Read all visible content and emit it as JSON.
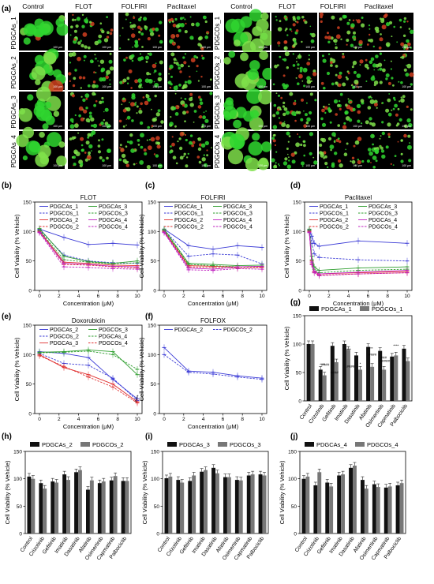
{
  "figure": {
    "panel_a": {
      "label": "(a)",
      "col_headers": [
        "Control",
        "FLOT",
        "FOLFIRI",
        "Paclitaxel"
      ],
      "left_rows": [
        "PDGCAs_1",
        "PDGCAs_2",
        "PDGCAs_3",
        "PDGCAs_4"
      ],
      "right_rows": [
        "PDGCOs_1",
        "PDGCOs_2",
        "PDGCOs_3",
        "PDGCOs_4"
      ],
      "scale_bar": "100 μm"
    }
  },
  "chart_data": [
    {
      "id": "b",
      "panel_label": "(b)",
      "type": "line",
      "title": "FLOT",
      "xlabel": "Concentration (μM)",
      "ylabel": "Cell Viability (% Vehicle)",
      "xlim": [
        0,
        10
      ],
      "ylim": [
        0,
        150
      ],
      "xticks": [
        0,
        2,
        4,
        6,
        8,
        10
      ],
      "yticks": [
        0,
        50,
        100,
        150
      ],
      "x": [
        0,
        2.5,
        5,
        7.5,
        10
      ],
      "series": [
        {
          "name": "PDGCAs_1",
          "color": "#3b3bd6",
          "dash": false,
          "values": [
            104,
            90,
            78,
            80,
            77
          ]
        },
        {
          "name": "PDGCOs_1",
          "color": "#3b3bd6",
          "dash": true,
          "values": [
            103,
            60,
            50,
            47,
            46
          ]
        },
        {
          "name": "PDGCAs_2",
          "color": "#e03030",
          "dash": false,
          "values": [
            101,
            48,
            46,
            43,
            42
          ]
        },
        {
          "name": "PDGCOs_2",
          "color": "#e03030",
          "dash": true,
          "values": [
            100,
            44,
            43,
            40,
            38
          ]
        },
        {
          "name": "PDGCAs_3",
          "color": "#2e9e2e",
          "dash": false,
          "values": [
            105,
            58,
            49,
            46,
            50
          ]
        },
        {
          "name": "PDGCOs_3",
          "color": "#2e9e2e",
          "dash": true,
          "values": [
            102,
            52,
            48,
            45,
            47
          ]
        },
        {
          "name": "PDGCAs_4",
          "color": "#c020c0",
          "dash": false,
          "values": [
            99,
            46,
            44,
            41,
            40
          ]
        },
        {
          "name": "PDGCOs_4",
          "color": "#c020c0",
          "dash": true,
          "values": [
            98,
            40,
            39,
            37,
            36
          ]
        }
      ]
    },
    {
      "id": "c",
      "panel_label": "(c)",
      "type": "line",
      "title": "FOLFIRI",
      "xlabel": "Concentration (μM)",
      "ylabel": "Cell Viability (% Vehicle)",
      "xlim": [
        0,
        10
      ],
      "ylim": [
        0,
        150
      ],
      "xticks": [
        0,
        2,
        4,
        6,
        8,
        10
      ],
      "yticks": [
        0,
        50,
        100,
        150
      ],
      "x": [
        0,
        2.5,
        5,
        7.5,
        10
      ],
      "series": [
        {
          "name": "PDGCAs_1",
          "color": "#3b3bd6",
          "dash": false,
          "values": [
            104,
            76,
            70,
            76,
            73
          ]
        },
        {
          "name": "PDGCOs_1",
          "color": "#3b3bd6",
          "dash": true,
          "values": [
            103,
            58,
            62,
            60,
            45
          ]
        },
        {
          "name": "PDGCAs_2",
          "color": "#e03030",
          "dash": false,
          "values": [
            101,
            42,
            41,
            40,
            40
          ]
        },
        {
          "name": "PDGCOs_2",
          "color": "#e03030",
          "dash": true,
          "values": [
            100,
            40,
            39,
            38,
            39
          ]
        },
        {
          "name": "PDGCAs_3",
          "color": "#2e9e2e",
          "dash": false,
          "values": [
            104,
            46,
            44,
            42,
            43
          ]
        },
        {
          "name": "PDGCOs_3",
          "color": "#2e9e2e",
          "dash": true,
          "values": [
            102,
            44,
            42,
            40,
            41
          ]
        },
        {
          "name": "PDGCAs_4",
          "color": "#c020c0",
          "dash": false,
          "values": [
            99,
            38,
            36,
            40,
            41
          ]
        },
        {
          "name": "PDGCOs_4",
          "color": "#c020c0",
          "dash": true,
          "values": [
            98,
            35,
            34,
            37,
            36
          ]
        }
      ]
    },
    {
      "id": "d",
      "panel_label": "(d)",
      "type": "line",
      "title": "Paclitaxel",
      "xlabel": "Concentration (μM)",
      "ylabel": "Cell Viability (% Vehicle)",
      "xlim": [
        0,
        10
      ],
      "ylim": [
        0,
        150
      ],
      "xticks": [
        0,
        2,
        4,
        6,
        8,
        10
      ],
      "yticks": [
        0,
        50,
        100,
        150
      ],
      "x": [
        0,
        0.25,
        0.5,
        1,
        5,
        10
      ],
      "series": [
        {
          "name": "PDGCAs_1",
          "color": "#3b3bd6",
          "dash": false,
          "values": [
            103,
            92,
            80,
            75,
            84,
            80
          ]
        },
        {
          "name": "PDGCOs_1",
          "color": "#3b3bd6",
          "dash": true,
          "values": [
            102,
            80,
            62,
            56,
            52,
            50
          ]
        },
        {
          "name": "PDGCAs_2",
          "color": "#e03030",
          "dash": false,
          "values": [
            101,
            50,
            32,
            28,
            30,
            32
          ]
        },
        {
          "name": "PDGCOs_2",
          "color": "#e03030",
          "dash": true,
          "values": [
            100,
            45,
            30,
            26,
            28,
            30
          ]
        },
        {
          "name": "PDGCAs_3",
          "color": "#2e9e2e",
          "dash": false,
          "values": [
            104,
            58,
            40,
            34,
            38,
            40
          ]
        },
        {
          "name": "PDGCOs_3",
          "color": "#2e9e2e",
          "dash": true,
          "values": [
            102,
            52,
            36,
            30,
            34,
            36
          ]
        },
        {
          "name": "PDGCAs_4",
          "color": "#c020c0",
          "dash": false,
          "values": [
            99,
            48,
            33,
            28,
            31,
            34
          ]
        },
        {
          "name": "PDGCOs_4",
          "color": "#c020c0",
          "dash": true,
          "values": [
            98,
            44,
            30,
            25,
            28,
            30
          ]
        }
      ]
    },
    {
      "id": "e",
      "panel_label": "(e)",
      "type": "line",
      "title": "Doxorubicin",
      "xlabel": "Concentration (μM)",
      "ylabel": "Cell Viability (% Vehicle)",
      "xlim": [
        0,
        10
      ],
      "ylim": [
        0,
        150
      ],
      "xticks": [
        0,
        2,
        4,
        6,
        8,
        10
      ],
      "yticks": [
        0,
        50,
        100,
        150
      ],
      "x": [
        0,
        2.5,
        5,
        7.5,
        10
      ],
      "annotation": "****",
      "series": [
        {
          "name": "PDGCAs_2",
          "color": "#3b3bd6",
          "dash": false,
          "values": [
            105,
            102,
            95,
            58,
            25
          ]
        },
        {
          "name": "PDGCOs_2",
          "color": "#3b3bd6",
          "dash": true,
          "values": [
            102,
            85,
            82,
            60,
            22
          ]
        },
        {
          "name": "PDGCAs_3",
          "color": "#e03030",
          "dash": false,
          "values": [
            100,
            78,
            66,
            50,
            20
          ]
        },
        {
          "name": "PDGCOs_3",
          "color": "#2e9e2e",
          "dash": false,
          "values": [
            104,
            105,
            108,
            105,
            66
          ]
        },
        {
          "name": "PDGCAs_4",
          "color": "#2e9e2e",
          "dash": true,
          "values": [
            103,
            104,
            106,
            100,
            75
          ]
        },
        {
          "name": "PDGCOs_4",
          "color": "#e03030",
          "dash": true,
          "values": [
            98,
            80,
            62,
            45,
            18
          ]
        }
      ]
    },
    {
      "id": "f",
      "panel_label": "(f)",
      "type": "line",
      "title": "FOLFOX",
      "xlabel": "Concentration (μM)",
      "ylabel": "Cell Viability (% Vehicle)",
      "xlim": [
        0,
        10
      ],
      "ylim": [
        0,
        150
      ],
      "xticks": [
        0,
        2,
        4,
        6,
        8,
        10
      ],
      "yticks": [
        0,
        50,
        100,
        150
      ],
      "x": [
        0,
        2.5,
        5,
        7.5,
        10
      ],
      "series": [
        {
          "name": "PDGCAs_2",
          "color": "#3b3bd6",
          "dash": false,
          "values": [
            112,
            72,
            70,
            64,
            60
          ]
        },
        {
          "name": "PDGCOs_2",
          "color": "#3b3bd6",
          "dash": true,
          "values": [
            100,
            70,
            67,
            62,
            58
          ]
        }
      ]
    },
    {
      "id": "g",
      "panel_label": "(g)",
      "type": "bar",
      "title": "",
      "ylabel": "Cell Viability (% Vehicle)",
      "ylim": [
        0,
        150
      ],
      "yticks": [
        0,
        50,
        100,
        150
      ],
      "categories": [
        "Control",
        "Crizotinib",
        "Gefitinib",
        "Imatinib",
        "Dasatinib",
        "Afatinib",
        "Osimertinib",
        "Capmatinib",
        "Palbociclib"
      ],
      "series": [
        {
          "name": "PDGCAs_1",
          "color": "#111111",
          "values": [
            100,
            55,
            97,
            100,
            80,
            95,
            88,
            78,
            92
          ]
        },
        {
          "name": "PDGCOs_1",
          "color": "#777777",
          "values": [
            100,
            45,
            68,
            90,
            55,
            60,
            55,
            80,
            70
          ]
        }
      ],
      "annotations": [
        "****",
        "####",
        "####",
        "****",
        "*",
        "****",
        "####",
        "###",
        "#####",
        "####",
        "****"
      ]
    },
    {
      "id": "h",
      "panel_label": "(h)",
      "type": "bar",
      "title": "",
      "ylabel": "Cell Viability (% Vehicle)",
      "ylim": [
        0,
        150
      ],
      "yticks": [
        0,
        50,
        100,
        150
      ],
      "categories": [
        "Control",
        "Crizotinib",
        "Gefitinib",
        "Imatinib",
        "Dasatinib",
        "Afatinib",
        "Osimertinib",
        "Capmatinib",
        "Palbociclib"
      ],
      "series": [
        {
          "name": "PDGCAs_2",
          "color": "#111111",
          "values": [
            104,
            92,
            95,
            108,
            112,
            80,
            92,
            97,
            96
          ]
        },
        {
          "name": "PDGCOs_2",
          "color": "#777777",
          "values": [
            100,
            82,
            93,
            98,
            116,
            97,
            95,
            105,
            96
          ]
        }
      ]
    },
    {
      "id": "i",
      "panel_label": "(i)",
      "type": "bar",
      "title": "",
      "ylabel": "Cell Viability (% Vehicle)",
      "ylim": [
        0,
        150
      ],
      "yticks": [
        0,
        50,
        100,
        150
      ],
      "categories": [
        "Control",
        "Crizotinib",
        "Gefitinib",
        "Imatinib",
        "Dasatinib",
        "Afatinib",
        "Osimertinib",
        "Capmatinib",
        "Palbociclib"
      ],
      "series": [
        {
          "name": "PDGCAs_3",
          "color": "#111111",
          "values": [
            101,
            98,
            96,
            113,
            120,
            103,
            98,
            106,
            108
          ]
        },
        {
          "name": "PDGCOs_3",
          "color": "#777777",
          "values": [
            104,
            93,
            106,
            116,
            110,
            103,
            97,
            108,
            106
          ]
        }
      ]
    },
    {
      "id": "j",
      "panel_label": "(j)",
      "type": "bar",
      "title": "",
      "ylabel": "Cell Viability (% Vehicle)",
      "ylim": [
        0,
        150
      ],
      "yticks": [
        0,
        50,
        100,
        150
      ],
      "categories": [
        "Control",
        "Crizotinib",
        "Gefitinib",
        "Imatinib",
        "Dasatinib",
        "Afatinib",
        "Osimertinib",
        "Capmatinib",
        "Palbociclib"
      ],
      "series": [
        {
          "name": "PDGCAs_4",
          "color": "#111111",
          "values": [
            100,
            88,
            93,
            106,
            120,
            98,
            90,
            84,
            88
          ]
        },
        {
          "name": "PDGCOs_4",
          "color": "#777777",
          "values": [
            104,
            112,
            86,
            108,
            124,
            82,
            85,
            86,
            92
          ]
        }
      ]
    }
  ]
}
